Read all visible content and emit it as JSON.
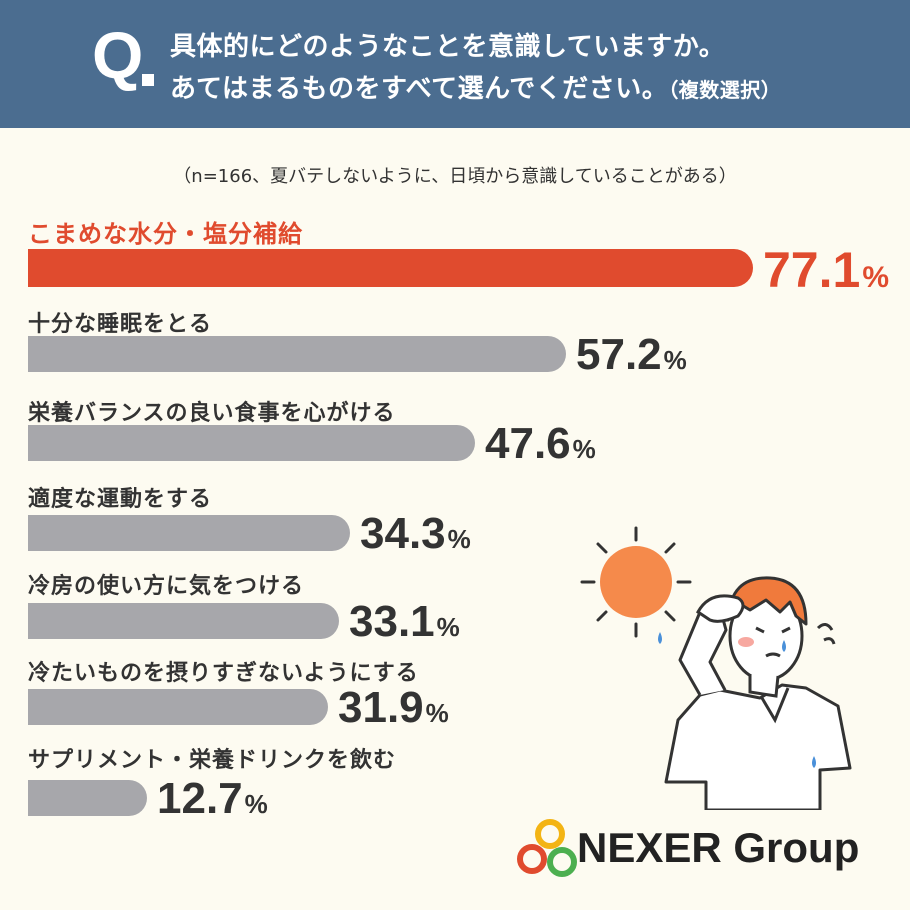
{
  "header": {
    "q_mark": "Q",
    "line1": "具体的にどのようなことを意識していますか。",
    "line2": "あてはまるものをすべて選んでください。",
    "line2_note": "（複数選択）"
  },
  "subtitle": "（n=166、夏バテしないように、日頃から意識していることがある）",
  "chart_data": {
    "type": "bar",
    "orientation": "horizontal",
    "categories": [
      "こまめな水分・塩分補給",
      "十分な睡眠をとる",
      "栄養バランスの良い食事を心がける",
      "適度な運動をする",
      "冷房の使い方に気をつける",
      "冷たいものを摂りすぎないようにする",
      "サプリメント・栄養ドリンクを飲む"
    ],
    "values": [
      77.1,
      57.2,
      47.6,
      34.3,
      33.1,
      31.9,
      12.7
    ],
    "value_labels": [
      "77.1",
      "57.2",
      "47.6",
      "34.3",
      "33.1",
      "31.9",
      "12.7"
    ],
    "unit": "%",
    "highlight_index": 0,
    "colors": {
      "highlight": "#e04b2e",
      "bar": "#a7a7ab",
      "text": "#333333"
    }
  },
  "logo": {
    "text": "NEXER Group"
  },
  "colors": {
    "header_bg": "#4b6d90",
    "page_bg": "#fdfbf1"
  }
}
